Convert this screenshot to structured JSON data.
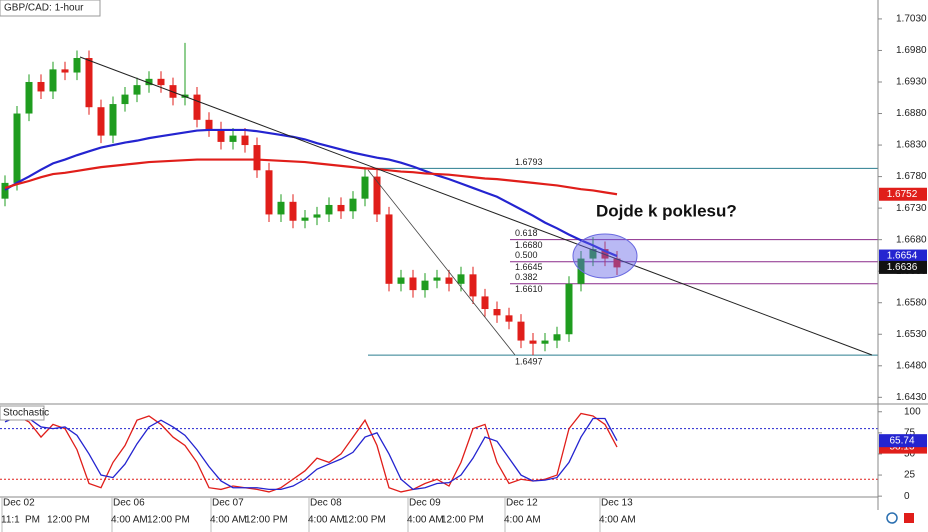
{
  "chart_data": [
    {
      "type": "candlestick",
      "title": "GBP/CAD: 1-hour",
      "open": [
        1.6745,
        1.677,
        1.688,
        1.693,
        1.6915,
        1.695,
        1.6945,
        1.6968,
        1.689,
        1.6845,
        1.6895,
        1.691,
        1.6925,
        1.6935,
        1.6925,
        1.6905,
        1.691,
        1.687,
        1.6855,
        1.6835,
        1.6845,
        1.683,
        1.679,
        1.672,
        1.674,
        1.671,
        1.6715,
        1.672,
        1.6735,
        1.6725,
        1.6745,
        1.678,
        1.672,
        1.661,
        1.662,
        1.66,
        1.6615,
        1.662,
        1.661,
        1.6625,
        1.659,
        1.657,
        1.656,
        1.655,
        1.652,
        1.6515,
        1.652,
        1.653,
        1.661,
        1.665,
        1.6665,
        1.665
      ],
      "high": [
        1.6782,
        1.6892,
        1.6942,
        1.6942,
        1.6962,
        1.6962,
        1.698,
        1.698,
        1.6902,
        1.6907,
        1.6922,
        1.6937,
        1.6947,
        1.6947,
        1.6937,
        1.6992,
        1.6922,
        1.6882,
        1.6867,
        1.6857,
        1.6857,
        1.6842,
        1.6802,
        1.6752,
        1.6752,
        1.6727,
        1.6732,
        1.6747,
        1.6747,
        1.6757,
        1.6795,
        1.6792,
        1.6732,
        1.6632,
        1.6632,
        1.6627,
        1.6632,
        1.6632,
        1.6637,
        1.6637,
        1.6602,
        1.6582,
        1.6572,
        1.6562,
        1.6532,
        1.6532,
        1.6542,
        1.6622,
        1.6662,
        1.6684,
        1.6677,
        1.6662
      ],
      "low": [
        1.6733,
        1.6758,
        1.6868,
        1.6903,
        1.6903,
        1.6933,
        1.6933,
        1.6878,
        1.6833,
        1.6833,
        1.6883,
        1.6898,
        1.6913,
        1.6913,
        1.6893,
        1.6893,
        1.6858,
        1.6843,
        1.6823,
        1.6823,
        1.6818,
        1.6778,
        1.6708,
        1.6708,
        1.6698,
        1.6698,
        1.6703,
        1.6708,
        1.6713,
        1.6713,
        1.6733,
        1.6708,
        1.6598,
        1.6598,
        1.6588,
        1.6588,
        1.6603,
        1.6598,
        1.6598,
        1.6578,
        1.6558,
        1.6548,
        1.6538,
        1.6508,
        1.6497,
        1.6503,
        1.6508,
        1.6518,
        1.6598,
        1.6638,
        1.6638,
        1.6624
      ],
      "close": [
        1.677,
        1.688,
        1.693,
        1.6915,
        1.695,
        1.6945,
        1.6968,
        1.689,
        1.6845,
        1.6895,
        1.691,
        1.6925,
        1.6935,
        1.6925,
        1.6905,
        1.691,
        1.687,
        1.6855,
        1.6835,
        1.6845,
        1.683,
        1.679,
        1.672,
        1.674,
        1.671,
        1.6715,
        1.672,
        1.6735,
        1.6725,
        1.6745,
        1.678,
        1.672,
        1.661,
        1.662,
        1.66,
        1.6615,
        1.662,
        1.661,
        1.6625,
        1.659,
        1.657,
        1.656,
        1.655,
        1.652,
        1.6515,
        1.652,
        1.653,
        1.661,
        1.665,
        1.6665,
        1.665,
        1.6636
      ],
      "colors": {
        "up": "#1f9c1f",
        "down": "#e01e1a",
        "last": "#111111"
      },
      "overlays": [
        {
          "color": "#2424d0",
          "values": [
            1.6759,
            1.677,
            1.678,
            1.6791,
            1.6801,
            1.6807,
            1.6814,
            1.682,
            1.6826,
            1.683,
            1.6834,
            1.6837,
            1.6841,
            1.6844,
            1.6847,
            1.685,
            1.6853,
            1.6854,
            1.6854,
            1.6854,
            1.6854,
            1.6852,
            1.6849,
            1.6846,
            1.6843,
            1.6839,
            1.6833,
            1.6828,
            1.6823,
            1.6818,
            1.6814,
            1.681,
            1.6807,
            1.6802,
            1.6796,
            1.6789,
            1.6782,
            1.6776,
            1.6769,
            1.6762,
            1.6755,
            1.6748,
            1.6738,
            1.6728,
            1.6718,
            1.6707,
            1.6698,
            1.6688,
            1.6679,
            1.6671,
            1.6662,
            1.6654
          ]
        },
        {
          "color": "#e01e1a",
          "values": [
            1.6762,
            1.6768,
            1.6773,
            1.6779,
            1.6784,
            1.6786,
            1.6789,
            1.6792,
            1.6795,
            1.6797,
            1.6799,
            1.6801,
            1.6803,
            1.6804,
            1.6805,
            1.6806,
            1.6807,
            1.6807,
            1.6807,
            1.6807,
            1.6807,
            1.6807,
            1.6806,
            1.6805,
            1.6804,
            1.6803,
            1.6801,
            1.6799,
            1.6797,
            1.6795,
            1.6793,
            1.6792,
            1.679,
            1.6788,
            1.6787,
            1.6785,
            1.6784,
            1.6783,
            1.6781,
            1.6779,
            1.6777,
            1.6776,
            1.6774,
            1.6772,
            1.677,
            1.6768,
            1.6766,
            1.6763,
            1.676,
            1.6758,
            1.6755,
            1.6752
          ]
        }
      ],
      "ylim": [
        1.6421,
        1.706
      ],
      "yticks": [
        {
          "value": 1.703,
          "label": "1.7030"
        },
        {
          "value": 1.698,
          "label": "1.6980"
        },
        {
          "value": 1.693,
          "label": "1.6930"
        },
        {
          "value": 1.688,
          "label": "1.6880"
        },
        {
          "value": 1.683,
          "label": "1.6830"
        },
        {
          "value": 1.678,
          "label": "1.6780"
        },
        {
          "value": 1.673,
          "label": "1.6730"
        },
        {
          "value": 1.668,
          "label": "1.6680"
        },
        {
          "value": 1.663,
          "label": "1.6630"
        },
        {
          "value": 1.658,
          "label": "1.6580"
        },
        {
          "value": 1.653,
          "label": "1.6530"
        },
        {
          "value": 1.648,
          "label": "1.6480"
        },
        {
          "value": 1.643,
          "label": "1.6430"
        }
      ],
      "levels": [
        {
          "value": 1.6793,
          "label": "1.6793",
          "color": "#2a7d8f"
        },
        {
          "value": 1.6497,
          "label": "1.6497",
          "color": "#2a7d8f"
        }
      ],
      "fib": [
        {
          "ratio": {
            "value": 0.618,
            "label": "0.618"
          },
          "price": {
            "value": 1.668,
            "label": "1.6680"
          }
        },
        {
          "ratio": {
            "value": 0.5,
            "label": "0.500"
          },
          "price": {
            "value": 1.6645,
            "label": "1.6645"
          }
        },
        {
          "ratio": {
            "value": 0.382,
            "label": "0.382"
          },
          "price": {
            "value": 1.661,
            "label": "1.6610"
          }
        }
      ],
      "fib_color": "#8a2a8a",
      "annotation": "Dojde k poklesu?"
    },
    {
      "type": "line",
      "title": "Stochastic",
      "series": [
        {
          "color": "#e01e1a",
          "values": [
            92,
            95,
            88,
            70,
            85,
            80,
            55,
            15,
            10,
            40,
            60,
            90,
            95,
            85,
            70,
            60,
            40,
            10,
            8,
            12,
            10,
            8,
            5,
            10,
            20,
            30,
            45,
            40,
            50,
            70,
            90,
            60,
            10,
            5,
            8,
            15,
            20,
            12,
            40,
            80,
            85,
            40,
            15,
            20,
            18,
            20,
            25,
            80,
            98,
            95,
            85,
            58.13
          ]
        },
        {
          "color": "#2424d0",
          "values": [
            88,
            94,
            92,
            82,
            80,
            82,
            72,
            50,
            25,
            22,
            38,
            62,
            82,
            90,
            82,
            72,
            55,
            35,
            18,
            10,
            10,
            10,
            8,
            8,
            12,
            20,
            32,
            38,
            44,
            52,
            70,
            75,
            50,
            20,
            8,
            10,
            15,
            16,
            25,
            45,
            70,
            65,
            45,
            25,
            18,
            19,
            22,
            40,
            70,
            92,
            92,
            65.74
          ]
        }
      ],
      "ylim": [
        -1,
        108
      ],
      "yticks": [
        100,
        75,
        50,
        25,
        0
      ],
      "levels": [
        {
          "value": 80,
          "color": "#2424d0"
        },
        {
          "value": 20,
          "color": "#e01e1a"
        }
      ],
      "x_labels": {
        "dates": [
          "Dec 02",
          "Dec 06",
          "Dec 07",
          "Dec 08",
          "Dec 09",
          "Dec 12",
          "Dec 13"
        ],
        "times": [
          "11:1",
          "PM",
          "12:00 PM",
          "4:00 AM",
          "12:00 PM",
          "4:00 AM",
          "12:00 PM",
          "4:00 AM",
          "12:00 PM",
          "4:00 AM",
          "12:00 PM",
          "4:00 AM",
          "4:00 AM"
        ]
      }
    }
  ]
}
